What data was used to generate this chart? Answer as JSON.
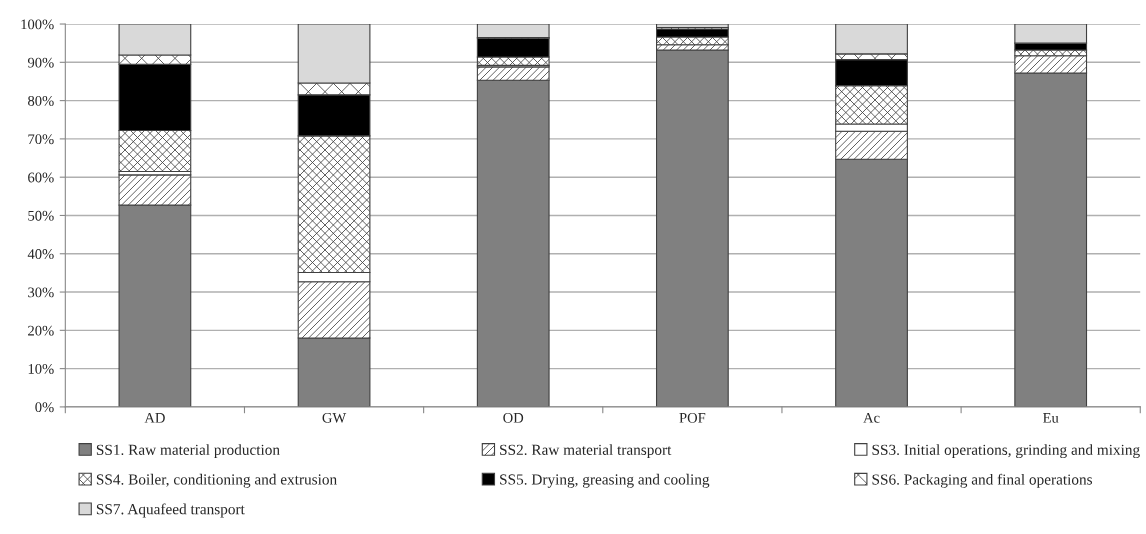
{
  "chart_data": {
    "type": "bar",
    "stacked": true,
    "categories": [
      "AD",
      "GW",
      "OD",
      "POF",
      "Ac",
      "Eu"
    ],
    "series": [
      {
        "name": "SS1. Raw material production",
        "color": "#808080",
        "values": [
          52.7,
          18.0,
          85.3,
          93.2,
          64.7,
          87.2
        ]
      },
      {
        "name": "SS2. Raw material transport",
        "color": "#404040",
        "values": [
          7.9,
          14.7,
          3.5,
          1.4,
          7.3,
          4.5
        ]
      },
      {
        "name": "SS3. Initial operations, grinding and mixing",
        "color": "#ffffff",
        "values": [
          0.9,
          2.4,
          0.4,
          null,
          1.9,
          null
        ]
      },
      {
        "name": "SS4. Boiler, conditioning and extrusion",
        "color": "#404040",
        "values": [
          10.7,
          35.7,
          2.2,
          2.0,
          10.0,
          1.5
        ]
      },
      {
        "name": "SS5. Drying, greasing and cooling",
        "color": "#000000",
        "values": [
          17.3,
          10.7,
          4.9,
          2.1,
          6.8,
          1.8
        ]
      },
      {
        "name": "SS6. Packaging and final operations",
        "color": "#404040",
        "values": [
          2.4,
          3.1,
          0.2,
          0.4,
          1.5,
          0.0
        ]
      },
      {
        "name": "SS7. Aquafeed transport",
        "color": "#d9d9d9",
        "values": [
          8.1,
          15.4,
          3.5,
          0.9,
          7.8,
          5.0
        ]
      }
    ],
    "ylim": [
      0,
      100
    ],
    "yticks": [
      {
        "value": 0,
        "label": "0%"
      },
      {
        "value": 10,
        "label": "10%"
      },
      {
        "value": 20,
        "label": "20%"
      },
      {
        "value": 30,
        "label": "30%"
      },
      {
        "value": 40,
        "label": "40%"
      },
      {
        "value": 50,
        "label": "50%"
      },
      {
        "value": 60,
        "label": "60%"
      },
      {
        "value": 70,
        "label": "70%"
      },
      {
        "value": 80,
        "label": "80%"
      },
      {
        "value": 90,
        "label": "90%"
      },
      {
        "value": 100,
        "label": "100%"
      }
    ],
    "grid": "y",
    "legend": "bottom"
  }
}
